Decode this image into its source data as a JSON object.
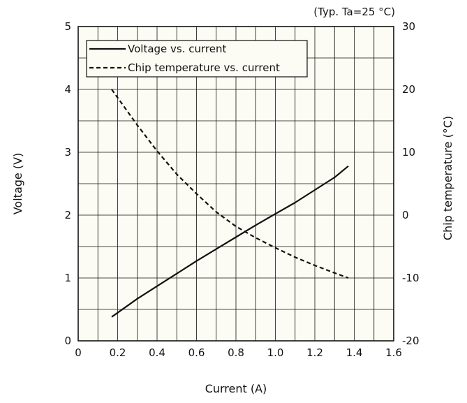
{
  "chart_data": {
    "type": "line",
    "note": "(Typ. Ta=25 °C)",
    "xlabel": "Current (A)",
    "ylabel": "Voltage (V)",
    "y2label": "Chip temperature (°C)",
    "xlim": [
      0,
      1.6
    ],
    "ylim": [
      0,
      5
    ],
    "y2lim": [
      -20,
      30
    ],
    "x_ticks": [
      "0",
      "0.2",
      "0.4",
      "0.6",
      "0.8",
      "1.0",
      "1.2",
      "1.4",
      "1.6"
    ],
    "y_ticks": [
      "0",
      "1",
      "2",
      "3",
      "4",
      "5"
    ],
    "y2_ticks": [
      "-20",
      "-10",
      "0",
      "10",
      "20",
      "30"
    ],
    "grid": true,
    "legend_position": "top-left",
    "series": [
      {
        "name": "Voltage vs. current",
        "axis": "left",
        "style": "solid",
        "color": "#111111",
        "x": [
          0.17,
          0.3,
          0.4,
          0.5,
          0.6,
          0.7,
          0.8,
          0.9,
          1.0,
          1.1,
          1.2,
          1.3,
          1.37
        ],
        "y": [
          0.38,
          0.67,
          0.87,
          1.07,
          1.27,
          1.46,
          1.65,
          1.84,
          2.02,
          2.2,
          2.4,
          2.6,
          2.78
        ]
      },
      {
        "name": "Chip temperature vs. current",
        "axis": "right",
        "style": "dashed",
        "color": "#111111",
        "x": [
          0.17,
          0.3,
          0.4,
          0.5,
          0.6,
          0.7,
          0.8,
          0.9,
          1.0,
          1.1,
          1.2,
          1.3,
          1.37
        ],
        "y": [
          20.0,
          14.3,
          10.2,
          6.5,
          3.4,
          0.5,
          -1.8,
          -3.6,
          -5.2,
          -6.7,
          -8.0,
          -9.2,
          -10.0
        ]
      }
    ]
  }
}
